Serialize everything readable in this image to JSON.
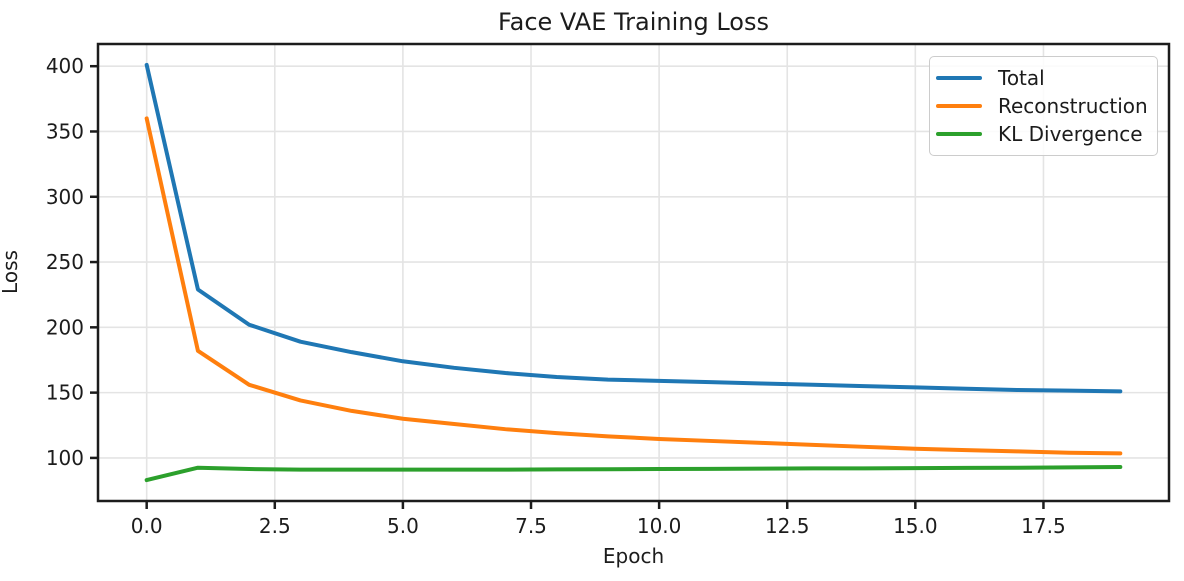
{
  "figure": {
    "background_color": "#ffffff",
    "text_color": "#1c1c1c",
    "spine_color": "#1c1c1c",
    "grid_color": "#e4e4e4"
  },
  "chart_data": {
    "type": "line",
    "title": "Face VAE Training Loss",
    "xlabel": "Epoch",
    "ylabel": "Loss",
    "grid": true,
    "legend_position": "upper right",
    "xlim": [
      -0.95,
      19.95
    ],
    "ylim": [
      67,
      417
    ],
    "xticks": {
      "values": [
        0,
        2.5,
        5,
        7.5,
        10,
        12.5,
        15,
        17.5
      ],
      "labels": [
        "0.0",
        "2.5",
        "5.0",
        "7.5",
        "10.0",
        "12.5",
        "15.0",
        "17.5"
      ]
    },
    "yticks": {
      "values": [
        100,
        150,
        200,
        250,
        300,
        350,
        400
      ],
      "labels": [
        "100",
        "150",
        "200",
        "250",
        "300",
        "350",
        "400"
      ]
    },
    "x": [
      0,
      1,
      2,
      3,
      4,
      5,
      6,
      7,
      8,
      9,
      10,
      11,
      12,
      13,
      14,
      15,
      16,
      17,
      18,
      19
    ],
    "series": [
      {
        "name": "Total",
        "color": "#1f77b4",
        "values": [
          401,
          229,
          202,
          189,
          181,
          174,
          169,
          165,
          162,
          160,
          159,
          158,
          157,
          156,
          155,
          154,
          153,
          152,
          151.5,
          151
        ]
      },
      {
        "name": "Reconstruction",
        "color": "#ff7f0e",
        "values": [
          360,
          182,
          156,
          144,
          136,
          130,
          126,
          122,
          119,
          116.5,
          114.5,
          113,
          111.5,
          110,
          108.5,
          107,
          106,
          105,
          104,
          103.5
        ]
      },
      {
        "name": "KL Divergence",
        "color": "#2ca02c",
        "values": [
          83,
          92.5,
          91.5,
          91,
          91,
          91,
          91,
          91,
          91.2,
          91.3,
          91.5,
          91.6,
          91.8,
          92,
          92,
          92.2,
          92.4,
          92.5,
          92.8,
          93
        ]
      }
    ]
  }
}
